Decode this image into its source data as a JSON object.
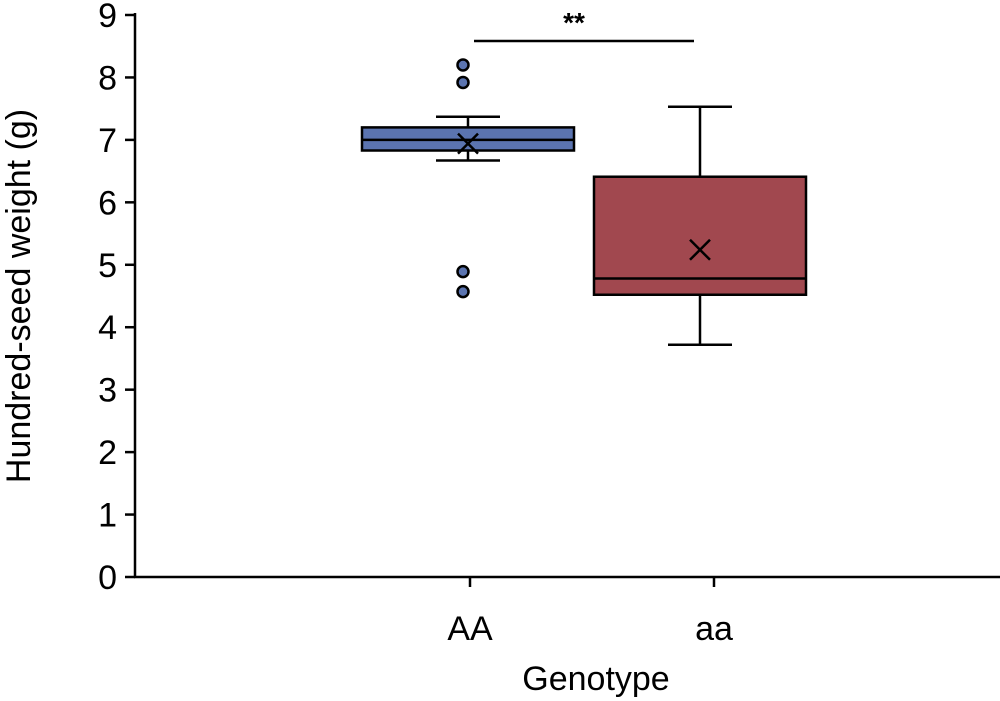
{
  "chart_data": {
    "type": "box",
    "title": "",
    "xlabel": "Genotype",
    "ylabel": "Hundred-seed weight (g)",
    "ylim": [
      0,
      9
    ],
    "yticks": [
      "0",
      "1",
      "2",
      "3",
      "4",
      "5",
      "6",
      "7",
      "8",
      "9"
    ],
    "grid": false,
    "categories": [
      "AA",
      "aa"
    ],
    "boxes": [
      {
        "category": "AA",
        "color": "#5b74b0",
        "whisker_low": 6.67,
        "q1": 6.83,
        "median": 7.0,
        "q3": 7.2,
        "whisker_high": 7.37,
        "mean": 6.94,
        "outliers": [
          8.2,
          7.92,
          4.89,
          4.57
        ]
      },
      {
        "category": "aa",
        "color": "#a1484f",
        "whisker_low": 3.72,
        "q1": 4.52,
        "median": 4.78,
        "q3": 6.41,
        "whisker_high": 7.53,
        "mean": 5.24,
        "outliers": []
      }
    ],
    "annotations": [
      {
        "text": "**",
        "between": [
          "AA",
          "aa"
        ]
      }
    ]
  }
}
